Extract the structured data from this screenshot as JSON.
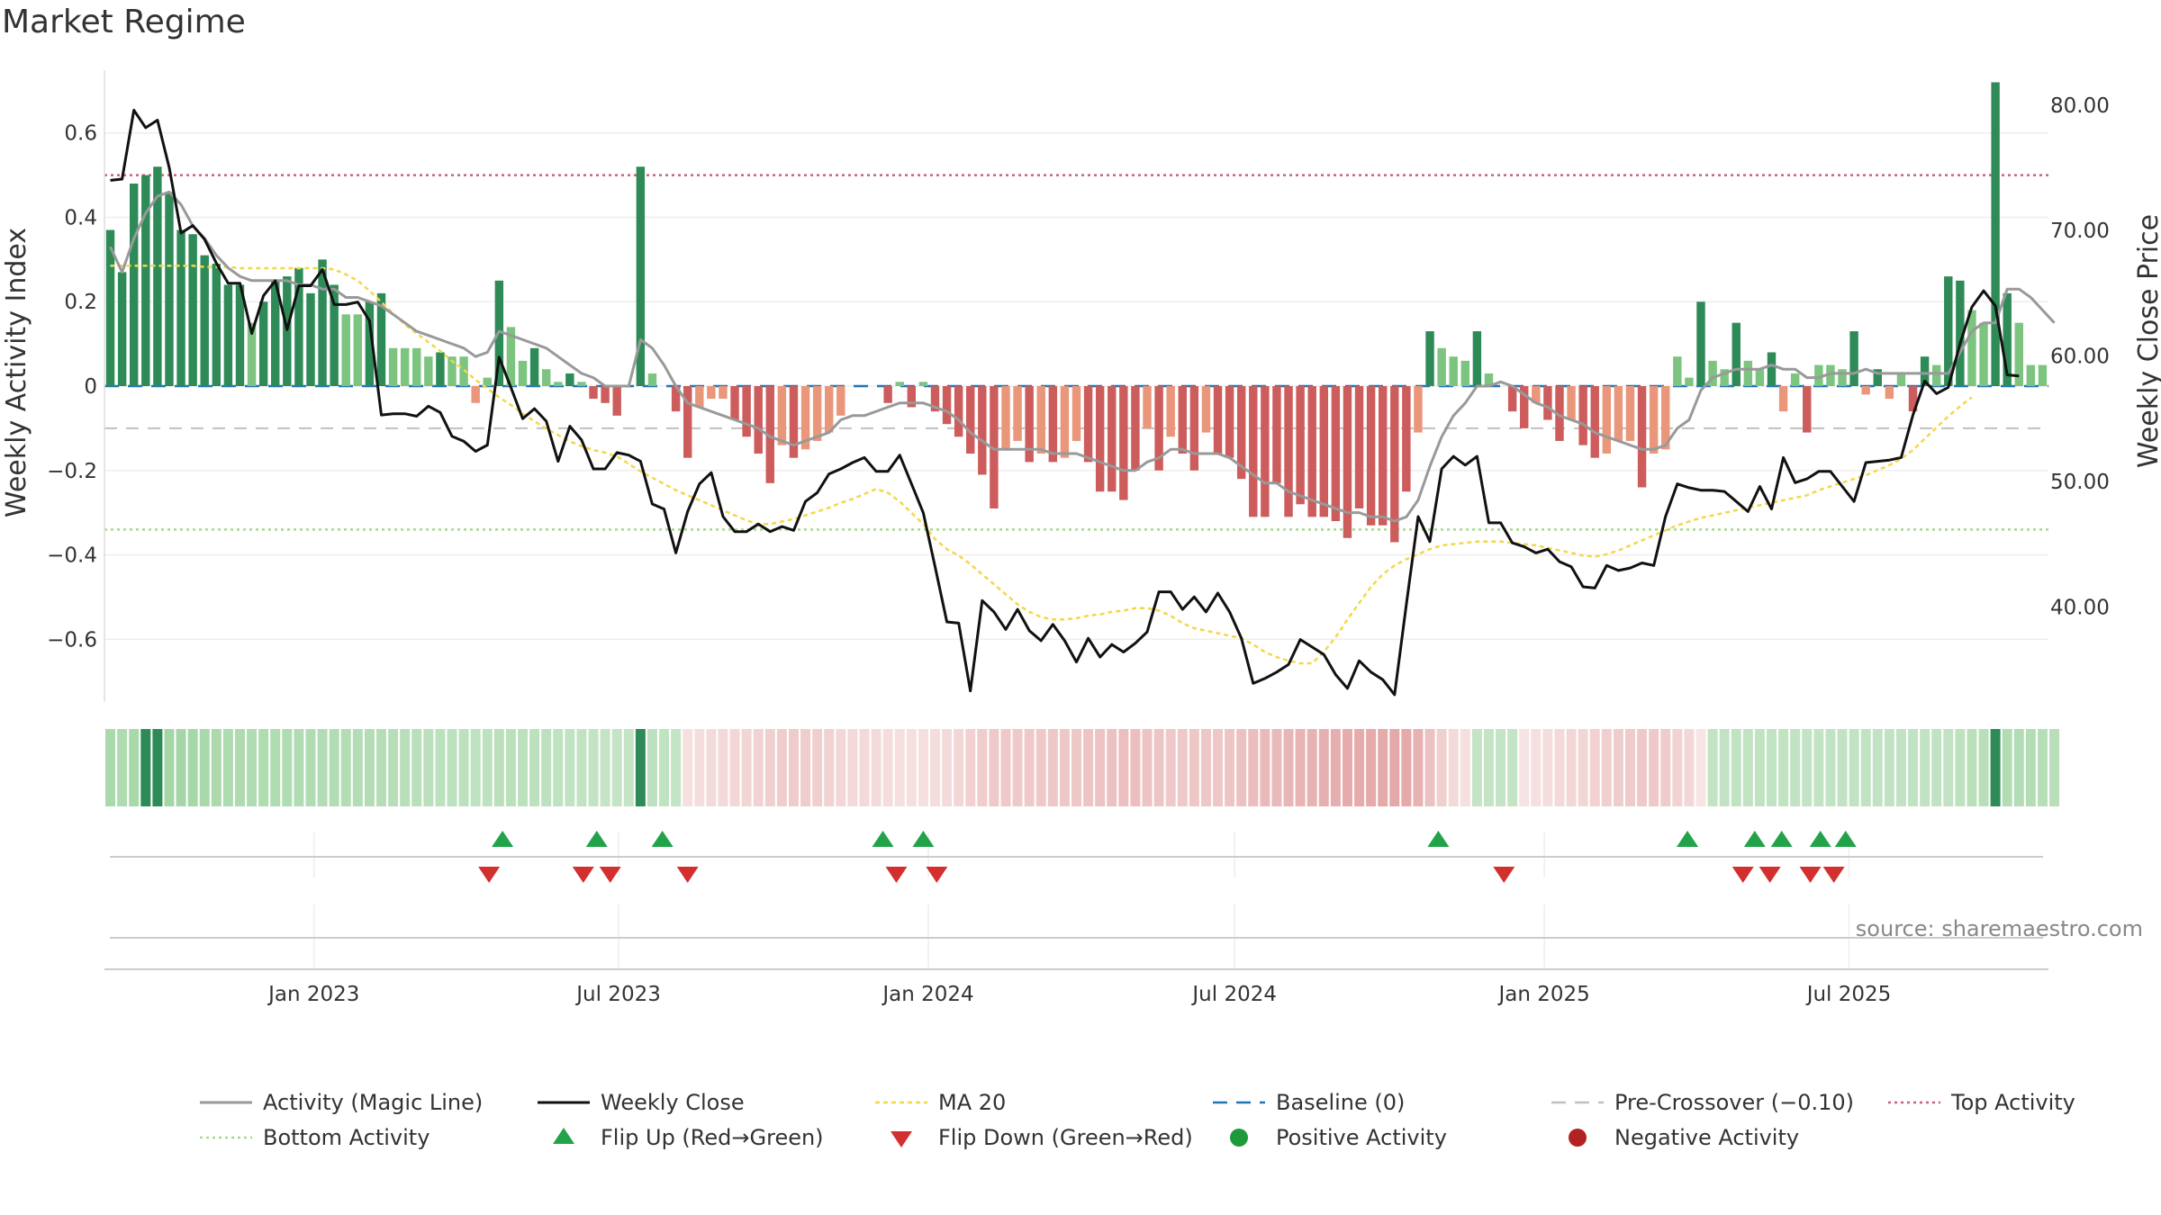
{
  "title": "Market Regime",
  "source": "source: sharemaestro.com",
  "colors": {
    "pos_strong": "#2e8b57",
    "pos_light": "#7cc47f",
    "neg_strong": "#cd5c5c",
    "neg_light": "#e9967a",
    "magic_line": "#999999",
    "weekly_close": "#111111",
    "ma20": "#f2d84a",
    "baseline": "#1f77b4",
    "pre_crossover": "#c0c0c0",
    "top_activity": "#c9607f",
    "bottom_activity": "#a8d98a",
    "flip_up": "#22a34a",
    "flip_down": "#d32f2f",
    "positive_dot": "#1e9a3a",
    "negative_dot": "#b22222"
  },
  "chart_data": {
    "type": "bar",
    "x_start": "2022-09-02",
    "x_interval_days": 7,
    "left_axis": {
      "label": "Weekly Activity Index",
      "ylim": [
        -0.77,
        0.77
      ],
      "ticks": [
        0.6,
        0.4,
        0.2,
        0,
        -0.2,
        -0.4,
        -0.6
      ],
      "tick_labels": [
        "0.6",
        "0.4",
        "0.2",
        "0",
        "−0.2",
        "−0.4",
        "−0.6"
      ]
    },
    "right_axis": {
      "label": "Weekly Close Price",
      "ylim": [
        31.7,
        83.5
      ],
      "ticks": [
        80,
        70,
        60,
        50,
        40
      ],
      "tick_labels": [
        "80.00",
        "70.00",
        "60.00",
        "50.00",
        "40.00"
      ]
    },
    "x_ticks": [
      {
        "label": "Jan 2023",
        "date": "2023-01-01"
      },
      {
        "label": "Jul 2023",
        "date": "2023-07-01"
      },
      {
        "label": "Jan 2024",
        "date": "2024-01-01"
      },
      {
        "label": "Jul 2024",
        "date": "2024-07-01"
      },
      {
        "label": "Jan 2025",
        "date": "2025-01-01"
      },
      {
        "label": "Jul 2025",
        "date": "2025-07-01"
      }
    ],
    "reference_lines": {
      "top_activity": 0.5,
      "bottom_activity": -0.34,
      "pre_crossover": -0.1,
      "baseline": 0
    },
    "activity": [
      0.37,
      0.27,
      0.48,
      0.5,
      0.52,
      0.46,
      0.37,
      0.36,
      0.31,
      0.29,
      0.24,
      0.24,
      0.15,
      0.2,
      0.25,
      0.26,
      0.28,
      0.22,
      0.3,
      0.24,
      0.17,
      0.17,
      0.2,
      0.22,
      0.09,
      0.09,
      0.09,
      0.07,
      0.08,
      0.07,
      0.07,
      -0.04,
      0.02,
      0.25,
      0.14,
      0.06,
      0.09,
      0.04,
      0.01,
      0.03,
      0.01,
      -0.03,
      -0.04,
      -0.07,
      0.0,
      0.52,
      0.03,
      0.0,
      -0.06,
      -0.17,
      -0.05,
      -0.03,
      -0.03,
      -0.08,
      -0.12,
      -0.16,
      -0.23,
      -0.14,
      -0.17,
      -0.15,
      -0.13,
      -0.11,
      -0.07,
      0.0,
      0.0,
      0.0,
      -0.04,
      0.01,
      -0.05,
      0.01,
      -0.06,
      -0.09,
      -0.12,
      -0.16,
      -0.21,
      -0.29,
      -0.15,
      -0.13,
      -0.18,
      -0.16,
      -0.18,
      -0.17,
      -0.13,
      -0.18,
      -0.25,
      -0.25,
      -0.27,
      -0.2,
      -0.1,
      -0.2,
      -0.12,
      -0.16,
      -0.2,
      -0.11,
      -0.16,
      -0.17,
      -0.22,
      -0.31,
      -0.31,
      -0.23,
      -0.31,
      -0.28,
      -0.31,
      -0.31,
      -0.32,
      -0.36,
      -0.29,
      -0.33,
      -0.33,
      -0.37,
      -0.25,
      -0.11,
      0.13,
      0.09,
      0.07,
      0.06,
      0.13,
      0.03,
      0.0,
      -0.06,
      -0.1,
      -0.04,
      -0.08,
      -0.13,
      -0.08,
      -0.14,
      -0.17,
      -0.16,
      -0.13,
      -0.13,
      -0.24,
      -0.16,
      -0.15,
      0.07,
      0.02,
      0.2,
      0.06,
      0.04,
      0.15,
      0.06,
      0.04,
      0.08,
      -0.06,
      0.03,
      -0.11,
      0.05,
      0.05,
      0.04,
      0.13,
      -0.02,
      0.04,
      -0.03,
      0.03,
      -0.06,
      0.07,
      0.05,
      0.26,
      0.25,
      0.18,
      0.15,
      0.72,
      0.22,
      0.15,
      0.05,
      0.05
    ],
    "magic_line": [
      0.33,
      0.27,
      0.35,
      0.41,
      0.45,
      0.46,
      0.43,
      0.38,
      0.35,
      0.31,
      0.28,
      0.26,
      0.25,
      0.25,
      0.25,
      0.25,
      0.24,
      0.24,
      0.23,
      0.23,
      0.21,
      0.21,
      0.2,
      0.19,
      0.17,
      0.15,
      0.13,
      0.12,
      0.11,
      0.1,
      0.09,
      0.07,
      0.08,
      0.13,
      0.12,
      0.11,
      0.1,
      0.09,
      0.07,
      0.05,
      0.03,
      0.02,
      0.0,
      0.0,
      0.0,
      0.11,
      0.09,
      0.05,
      0.0,
      -0.04,
      -0.05,
      -0.06,
      -0.07,
      -0.08,
      -0.09,
      -0.1,
      -0.12,
      -0.13,
      -0.14,
      -0.13,
      -0.12,
      -0.11,
      -0.08,
      -0.07,
      -0.07,
      -0.06,
      -0.05,
      -0.04,
      -0.04,
      -0.04,
      -0.05,
      -0.06,
      -0.08,
      -0.11,
      -0.13,
      -0.15,
      -0.15,
      -0.15,
      -0.15,
      -0.15,
      -0.16,
      -0.16,
      -0.16,
      -0.17,
      -0.18,
      -0.19,
      -0.2,
      -0.2,
      -0.18,
      -0.17,
      -0.15,
      -0.15,
      -0.16,
      -0.16,
      -0.16,
      -0.17,
      -0.19,
      -0.21,
      -0.23,
      -0.23,
      -0.25,
      -0.26,
      -0.27,
      -0.28,
      -0.29,
      -0.3,
      -0.3,
      -0.31,
      -0.31,
      -0.32,
      -0.31,
      -0.27,
      -0.19,
      -0.12,
      -0.07,
      -0.04,
      0.0,
      0.0,
      0.01,
      0.0,
      -0.02,
      -0.04,
      -0.05,
      -0.07,
      -0.08,
      -0.09,
      -0.11,
      -0.12,
      -0.13,
      -0.14,
      -0.15,
      -0.15,
      -0.14,
      -0.1,
      -0.08,
      -0.01,
      0.02,
      0.03,
      0.04,
      0.04,
      0.04,
      0.05,
      0.04,
      0.04,
      0.02,
      0.02,
      0.03,
      0.03,
      0.03,
      0.04,
      0.03,
      0.03,
      0.03,
      0.03,
      0.03,
      0.03,
      0.03,
      0.08,
      0.13,
      0.15,
      0.15,
      0.23,
      0.23,
      0.21,
      0.18,
      0.15
    ],
    "weekly_close": [
      74.0,
      74.1,
      79.6,
      78.2,
      78.8,
      75.0,
      69.8,
      70.4,
      69.3,
      67.4,
      65.8,
      65.8,
      61.8,
      64.8,
      66.0,
      62.1,
      65.6,
      65.6,
      66.9,
      64.1,
      64.1,
      64.3,
      62.8,
      55.3,
      55.4,
      55.4,
      55.2,
      56.0,
      55.5,
      53.6,
      53.2,
      52.4,
      52.9,
      59.9,
      57.5,
      55.0,
      55.8,
      54.8,
      51.6,
      54.4,
      53.3,
      51.0,
      51.0,
      52.3,
      52.1,
      51.6,
      48.2,
      47.8,
      44.3,
      47.6,
      49.8,
      50.7,
      47.2,
      46.0,
      46.0,
      46.6,
      46.0,
      46.4,
      46.1,
      48.4,
      49.1,
      50.6,
      51.0,
      51.5,
      51.9,
      50.8,
      50.8,
      52.1,
      49.8,
      47.5,
      43.2,
      38.8,
      38.7,
      33.3,
      40.5,
      39.6,
      38.2,
      39.8,
      38.1,
      37.3,
      38.6,
      37.3,
      35.6,
      37.5,
      36.0,
      37.0,
      36.4,
      37.1,
      38.0,
      41.2,
      41.2,
      39.8,
      40.8,
      39.6,
      41.1,
      39.6,
      37.5,
      33.9,
      34.3,
      34.8,
      35.4,
      37.4,
      36.8,
      36.2,
      34.6,
      33.5,
      35.7,
      34.8,
      34.2,
      33.0,
      40.2,
      47.2,
      45.2,
      51.0,
      52.0,
      51.3,
      52.0,
      46.7,
      46.7,
      45.1,
      44.8,
      44.3,
      44.6,
      43.6,
      43.2,
      41.6,
      41.5,
      43.3,
      42.9,
      43.1,
      43.5,
      43.3,
      47.2,
      49.8,
      49.5,
      49.3,
      49.3,
      49.2,
      48.4,
      47.6,
      49.6,
      47.8,
      51.9,
      49.9,
      50.2,
      50.8,
      50.8,
      49.6,
      48.4,
      51.5,
      51.6,
      51.7,
      51.9,
      55.3,
      58.0,
      57.0,
      57.5,
      61.0,
      63.9,
      65.2,
      64.0,
      58.5,
      58.4
    ],
    "ma20": [
      67.2,
      67.2,
      67.2,
      67.2,
      67.2,
      67.2,
      67.2,
      67.2,
      67.1,
      67.1,
      67.1,
      67.0,
      67.0,
      67.0,
      67.0,
      67.0,
      67.0,
      67.0,
      67.0,
      66.9,
      66.5,
      66.0,
      65.2,
      64.3,
      63.4,
      62.5,
      61.8,
      61.1,
      60.4,
      59.6,
      58.9,
      58.1,
      57.4,
      56.7,
      56.1,
      55.4,
      54.8,
      54.2,
      53.7,
      53.2,
      52.8,
      52.5,
      52.3,
      52.0,
      51.4,
      50.8,
      50.3,
      49.8,
      49.3,
      48.9,
      48.5,
      48.1,
      47.7,
      47.3,
      46.9,
      46.6,
      46.6,
      46.8,
      47.0,
      47.3,
      47.6,
      47.9,
      48.3,
      48.6,
      49.0,
      49.4,
      49.1,
      48.4,
      47.5,
      46.6,
      45.4,
      44.6,
      44.1,
      43.4,
      42.6,
      41.8,
      41.0,
      40.2,
      39.6,
      39.2,
      39.0,
      39.0,
      39.1,
      39.3,
      39.4,
      39.6,
      39.7,
      39.9,
      39.9,
      39.7,
      39.3,
      38.7,
      38.3,
      38.1,
      37.9,
      37.7,
      37.5,
      37.0,
      36.4,
      36.0,
      35.7,
      35.5,
      35.5,
      36.4,
      37.6,
      39.0,
      40.3,
      41.6,
      42.6,
      43.3,
      43.8,
      44.2,
      44.6,
      44.9,
      45.0,
      45.1,
      45.2,
      45.2,
      45.2,
      45.1,
      45.0,
      44.9,
      44.7,
      44.5,
      44.3,
      44.1,
      44.0,
      44.2,
      44.5,
      44.9,
      45.3,
      45.7,
      46.1,
      46.5,
      46.8,
      47.1,
      47.3,
      47.5,
      47.7,
      47.9,
      48.1,
      48.3,
      48.5,
      48.7,
      48.9,
      49.3,
      49.6,
      49.9,
      50.2,
      50.5,
      50.9,
      51.3,
      51.8,
      52.5,
      53.4,
      54.3,
      55.2,
      56.0,
      56.7
    ],
    "flip_up": [
      {
        "date": "2023-04-23"
      },
      {
        "date": "2023-06-18"
      },
      {
        "date": "2023-07-27"
      },
      {
        "date": "2023-12-05"
      },
      {
        "date": "2023-12-29"
      },
      {
        "date": "2024-10-30"
      },
      {
        "date": "2025-03-27"
      },
      {
        "date": "2025-05-06"
      },
      {
        "date": "2025-05-22"
      },
      {
        "date": "2025-06-14"
      },
      {
        "date": "2025-06-29"
      }
    ],
    "flip_down": [
      {
        "date": "2023-04-15"
      },
      {
        "date": "2023-06-10"
      },
      {
        "date": "2023-06-26"
      },
      {
        "date": "2023-08-11"
      },
      {
        "date": "2023-12-13"
      },
      {
        "date": "2024-01-06"
      },
      {
        "date": "2024-12-08"
      },
      {
        "date": "2025-04-29"
      },
      {
        "date": "2025-05-15"
      },
      {
        "date": "2025-06-08"
      },
      {
        "date": "2025-06-22"
      }
    ],
    "legend": [
      {
        "label": "Activity (Magic Line)",
        "kind": "line-grey"
      },
      {
        "label": "Weekly Close",
        "kind": "line-black"
      },
      {
        "label": "MA 20",
        "kind": "dotted-yellow"
      },
      {
        "label": "Baseline (0)",
        "kind": "dashed-blue"
      },
      {
        "label": "Pre-Crossover (−0.10)",
        "kind": "dashed-grey"
      },
      {
        "label": "Top Activity",
        "kind": "dotted-pink"
      },
      {
        "label": "Bottom Activity",
        "kind": "dotted-green"
      },
      {
        "label": "Flip Up (Red→Green)",
        "kind": "triangle-up"
      },
      {
        "label": "Flip Down (Green→Red)",
        "kind": "triangle-down"
      },
      {
        "label": "Positive Activity",
        "kind": "dot-green"
      },
      {
        "label": "Negative Activity",
        "kind": "dot-red"
      }
    ],
    "legend_placement": "bottom"
  }
}
